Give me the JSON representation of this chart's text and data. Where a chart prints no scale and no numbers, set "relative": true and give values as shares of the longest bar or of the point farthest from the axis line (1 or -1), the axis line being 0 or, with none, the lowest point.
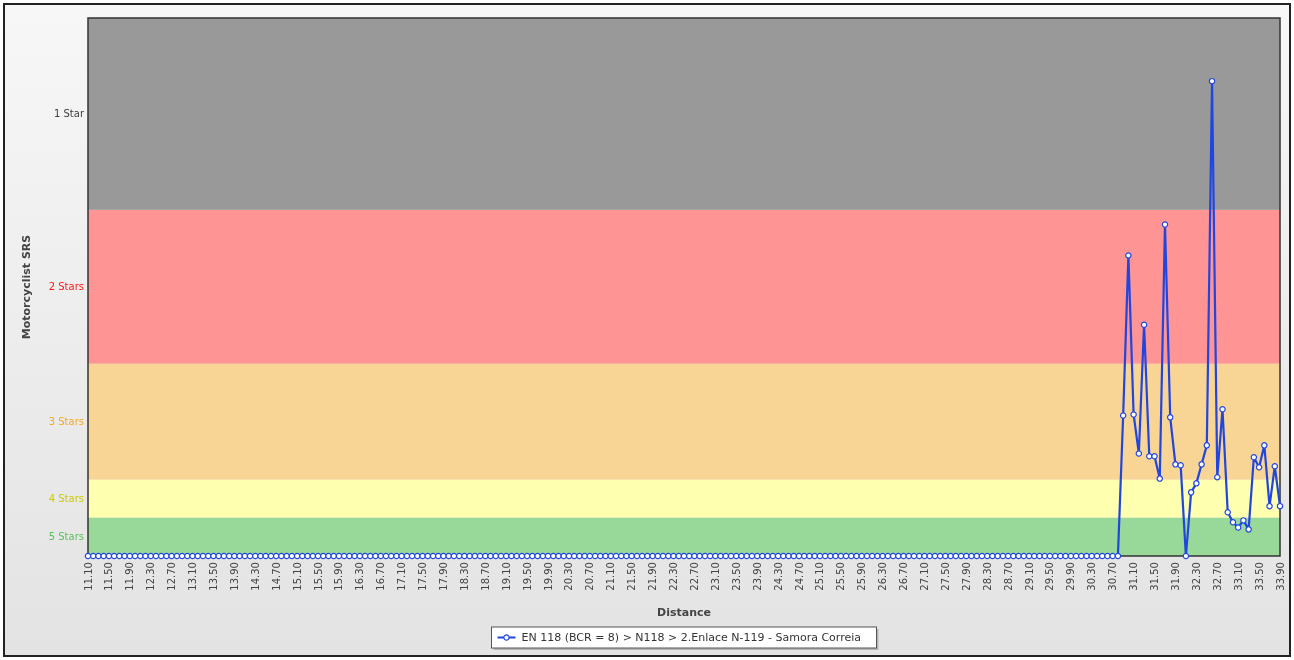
{
  "chart_data": {
    "type": "line",
    "xlabel": "Distance",
    "ylabel": "Motorcyclist SRS",
    "relative": true,
    "marker": "circle",
    "line_style": "solid",
    "legend": "bottom",
    "x": [
      11.1,
      11.2,
      11.3,
      11.4,
      11.5,
      11.6,
      11.7,
      11.8,
      11.9,
      12,
      12.1,
      12.2,
      12.3,
      12.4,
      12.5,
      12.6,
      12.7,
      12.8,
      12.9,
      13,
      13.1,
      13.2,
      13.3,
      13.4,
      13.5,
      13.6,
      13.7,
      13.8,
      13.9,
      14,
      14.1,
      14.2,
      14.3,
      14.4,
      14.5,
      14.6,
      14.7,
      14.8,
      14.9,
      15,
      15.1,
      15.2,
      15.3,
      15.4,
      15.5,
      15.6,
      15.7,
      15.8,
      15.9,
      16,
      16.1,
      16.2,
      16.3,
      16.4,
      16.5,
      16.6,
      16.7,
      16.8,
      16.9,
      17,
      17.1,
      17.2,
      17.3,
      17.4,
      17.5,
      17.6,
      17.7,
      17.8,
      17.9,
      18,
      18.1,
      18.2,
      18.3,
      18.4,
      18.5,
      18.6,
      18.7,
      18.8,
      18.9,
      19,
      19.1,
      19.2,
      19.3,
      19.4,
      19.5,
      19.6,
      19.7,
      19.8,
      19.9,
      20,
      20.1,
      20.2,
      20.3,
      20.4,
      20.5,
      20.6,
      20.7,
      20.8,
      20.9,
      21,
      21.1,
      21.2,
      21.3,
      21.4,
      21.5,
      21.6,
      21.7,
      21.8,
      21.9,
      22,
      22.1,
      22.2,
      22.3,
      22.4,
      22.5,
      22.6,
      22.7,
      22.8,
      22.9,
      23,
      23.1,
      23.2,
      23.3,
      23.4,
      23.5,
      23.6,
      23.7,
      23.8,
      23.9,
      24,
      24.1,
      24.2,
      24.3,
      24.4,
      24.5,
      24.6,
      24.7,
      24.8,
      24.9,
      25,
      25.1,
      25.2,
      25.3,
      25.4,
      25.5,
      25.6,
      25.7,
      25.8,
      25.9,
      26,
      26.1,
      26.2,
      26.3,
      26.4,
      26.5,
      26.6,
      26.7,
      26.8,
      26.9,
      27,
      27.1,
      27.2,
      27.3,
      27.4,
      27.5,
      27.6,
      27.7,
      27.8,
      27.9,
      28,
      28.1,
      28.2,
      28.3,
      28.4,
      28.5,
      28.6,
      28.7,
      28.8,
      28.9,
      29,
      29.1,
      29.2,
      29.3,
      29.4,
      29.5,
      29.6,
      29.7,
      29.8,
      29.9,
      30,
      30.1,
      30.2,
      30.3,
      30.4,
      30.5,
      30.6,
      30.7,
      30.8,
      30.9,
      31,
      31.1,
      31.2,
      31.3,
      31.4,
      31.5,
      31.6,
      31.7,
      31.8,
      31.9,
      32,
      32.1,
      32.2,
      32.3,
      32.4,
      32.5,
      32.6,
      32.7,
      32.8,
      32.9,
      33,
      33.1,
      33.2,
      33.3,
      33.4,
      33.5,
      33.6,
      33.7,
      33.8,
      33.9
    ],
    "series": [
      {
        "name": "EN 118 (BCR = 8) > N118 > 2.Enlace N-119 - Samora Correia",
        "color": "#2046e0",
        "values": [
          0,
          0,
          0,
          0,
          0,
          0,
          0,
          0,
          0,
          0,
          0,
          0,
          0,
          0,
          0,
          0,
          0,
          0,
          0,
          0,
          0,
          0,
          0,
          0,
          0,
          0,
          0,
          0,
          0,
          0,
          0,
          0,
          0,
          0,
          0,
          0,
          0,
          0,
          0,
          0,
          0,
          0,
          0,
          0,
          0,
          0,
          0,
          0,
          0,
          0,
          0,
          0,
          0,
          0,
          0,
          0,
          0,
          0,
          0,
          0,
          0,
          0,
          0,
          0,
          0,
          0,
          0,
          0,
          0,
          0,
          0,
          0,
          0,
          0,
          0,
          0,
          0,
          0,
          0,
          0,
          0,
          0,
          0,
          0,
          0,
          0,
          0,
          0,
          0,
          0,
          0,
          0,
          0,
          0,
          0,
          0,
          0,
          0,
          0,
          0,
          0,
          0,
          0,
          0,
          0,
          0,
          0,
          0,
          0,
          0,
          0,
          0,
          0,
          0,
          0,
          0,
          0,
          0,
          0,
          0,
          0,
          0,
          0,
          0,
          0,
          0,
          0,
          0,
          0,
          0,
          0,
          0,
          0,
          0,
          0,
          0,
          0,
          0,
          0,
          0,
          0,
          0,
          0,
          0,
          0,
          0,
          0,
          0,
          0,
          0,
          0,
          0,
          0,
          0,
          0,
          0,
          0,
          0,
          0,
          0,
          0,
          0,
          0,
          0,
          0,
          0,
          0,
          0,
          0,
          0,
          0,
          0,
          0,
          0,
          0,
          0,
          0,
          0,
          0,
          0,
          0,
          0,
          0,
          0,
          0,
          0,
          0,
          0,
          0,
          0,
          0,
          0,
          0,
          0,
          0,
          0,
          0,
          0,
          0.296,
          0.633,
          0.298,
          0.216,
          0.487,
          0.21,
          0.21,
          0.163,
          0.698,
          0.292,
          0.193,
          0.191,
          0,
          0.134,
          0.153,
          0.193,
          0.233,
          1,
          0.166,
          0.309,
          0.092,
          0.071,
          0.06,
          0.075,
          0.056,
          0.208,
          0.187,
          0.233,
          0.105,
          0.189,
          0.105
        ]
      }
    ],
    "bands": [
      {
        "axis": "y",
        "from": 0,
        "to": 0.081,
        "label": "5 Stars",
        "color": "#98d898"
      },
      {
        "axis": "y",
        "from": 0.081,
        "to": 0.161,
        "label": "4 Stars",
        "color": "#ffffb0"
      },
      {
        "axis": "y",
        "from": 0.161,
        "to": 0.405,
        "label": "3 Stars",
        "color": "#f9d595"
      },
      {
        "axis": "y",
        "from": 0.405,
        "to": 0.729,
        "label": "2 Stars",
        "color": "#ff9494"
      },
      {
        "axis": "y",
        "from": 0.729,
        "to": 1.133,
        "label": "1 Star",
        "color": "#999999"
      }
    ],
    "xlim": [
      11.1,
      33.9
    ],
    "xticks": [
      {
        "value": 11.1,
        "label": "11.10"
      },
      {
        "value": 11.5,
        "label": "11.50"
      },
      {
        "value": 11.9,
        "label": "11.90"
      },
      {
        "value": 12.3,
        "label": "12.30"
      },
      {
        "value": 12.7,
        "label": "12.70"
      },
      {
        "value": 13.1,
        "label": "13.10"
      },
      {
        "value": 13.5,
        "label": "13.50"
      },
      {
        "value": 13.9,
        "label": "13.90"
      },
      {
        "value": 14.3,
        "label": "14.30"
      },
      {
        "value": 14.7,
        "label": "14.70"
      },
      {
        "value": 15.1,
        "label": "15.10"
      },
      {
        "value": 15.5,
        "label": "15.50"
      },
      {
        "value": 15.9,
        "label": "15.90"
      },
      {
        "value": 16.3,
        "label": "16.30"
      },
      {
        "value": 16.7,
        "label": "16.70"
      },
      {
        "value": 17.1,
        "label": "17.10"
      },
      {
        "value": 17.5,
        "label": "17.50"
      },
      {
        "value": 17.9,
        "label": "17.90"
      },
      {
        "value": 18.3,
        "label": "18.30"
      },
      {
        "value": 18.7,
        "label": "18.70"
      },
      {
        "value": 19.1,
        "label": "19.10"
      },
      {
        "value": 19.5,
        "label": "19.50"
      },
      {
        "value": 19.9,
        "label": "19.90"
      },
      {
        "value": 20.3,
        "label": "20.30"
      },
      {
        "value": 20.7,
        "label": "20.70"
      },
      {
        "value": 21.1,
        "label": "21.10"
      },
      {
        "value": 21.5,
        "label": "21.50"
      },
      {
        "value": 21.9,
        "label": "21.90"
      },
      {
        "value": 22.3,
        "label": "22.30"
      },
      {
        "value": 22.7,
        "label": "22.70"
      },
      {
        "value": 23.1,
        "label": "23.10"
      },
      {
        "value": 23.5,
        "label": "23.50"
      },
      {
        "value": 23.9,
        "label": "23.90"
      },
      {
        "value": 24.3,
        "label": "24.30"
      },
      {
        "value": 24.7,
        "label": "24.70"
      },
      {
        "value": 25.1,
        "label": "25.10"
      },
      {
        "value": 25.5,
        "label": "25.50"
      },
      {
        "value": 25.9,
        "label": "25.90"
      },
      {
        "value": 26.3,
        "label": "26.30"
      },
      {
        "value": 26.7,
        "label": "26.70"
      },
      {
        "value": 27.1,
        "label": "27.10"
      },
      {
        "value": 27.5,
        "label": "27.50"
      },
      {
        "value": 27.9,
        "label": "27.90"
      },
      {
        "value": 28.3,
        "label": "28.30"
      },
      {
        "value": 28.7,
        "label": "28.70"
      },
      {
        "value": 29.1,
        "label": "29.10"
      },
      {
        "value": 29.5,
        "label": "29.50"
      },
      {
        "value": 29.9,
        "label": "29.90"
      },
      {
        "value": 30.3,
        "label": "30.30"
      },
      {
        "value": 30.7,
        "label": "30.70"
      },
      {
        "value": 31.1,
        "label": "31.10"
      },
      {
        "value": 31.5,
        "label": "31.50"
      },
      {
        "value": 31.9,
        "label": "31.90"
      },
      {
        "value": 32.3,
        "label": "32.30"
      },
      {
        "value": 32.7,
        "label": "32.70"
      },
      {
        "value": 33.1,
        "label": "33.10"
      },
      {
        "value": 33.5,
        "label": "33.50"
      },
      {
        "value": 33.9,
        "label": "33.90"
      }
    ]
  }
}
